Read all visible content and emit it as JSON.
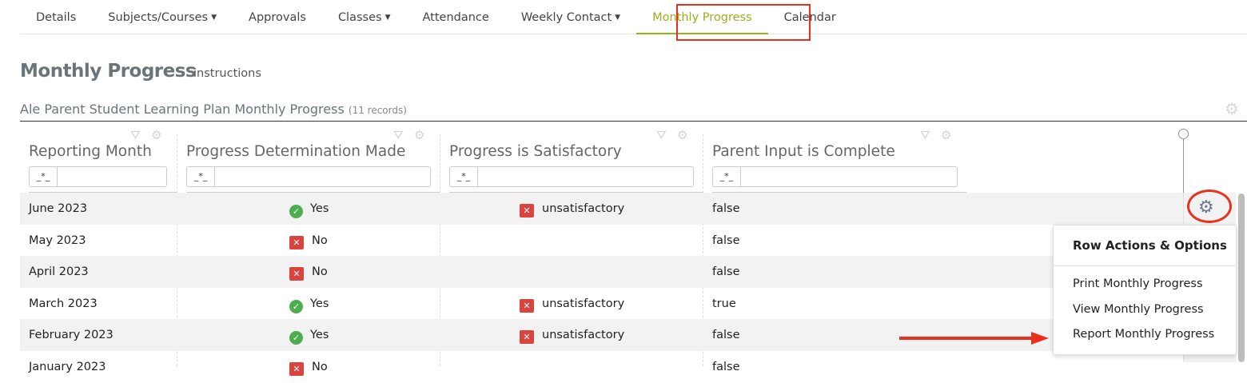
{
  "tabs": [
    {
      "label": "Details",
      "dropdown": false
    },
    {
      "label": "Subjects/Courses",
      "dropdown": true
    },
    {
      "label": "Approvals",
      "dropdown": false
    },
    {
      "label": "Classes",
      "dropdown": true
    },
    {
      "label": "Attendance",
      "dropdown": false
    },
    {
      "label": "Weekly Contact",
      "dropdown": true
    },
    {
      "label": "Monthly Progress",
      "dropdown": false,
      "active": true
    },
    {
      "label": "Calendar",
      "dropdown": false
    }
  ],
  "page": {
    "title": "Monthly Progress",
    "instructions": "instructions",
    "subtitle": "Ale Parent Student Learning Plan Monthly Progress",
    "record_count": "(11 records)"
  },
  "columns": [
    {
      "label": "Reporting Month",
      "filter_op": "_*_"
    },
    {
      "label": "Progress Determination Made",
      "filter_op": "_*_"
    },
    {
      "label": "Progress is Satisfactory",
      "filter_op": "_*_"
    },
    {
      "label": "Parent Input is Complete",
      "filter_op": "_*_"
    }
  ],
  "rows": [
    {
      "month": "June 2023",
      "determination": "Yes",
      "det_ok": true,
      "satisfactory": "unsatisfactory",
      "parent_input": "false"
    },
    {
      "month": "May 2023",
      "determination": "No",
      "det_ok": false,
      "satisfactory": "",
      "parent_input": "false"
    },
    {
      "month": "April 2023",
      "determination": "No",
      "det_ok": false,
      "satisfactory": "",
      "parent_input": "false"
    },
    {
      "month": "March 2023",
      "determination": "Yes",
      "det_ok": true,
      "satisfactory": "unsatisfactory",
      "parent_input": "true"
    },
    {
      "month": "February 2023",
      "determination": "Yes",
      "det_ok": true,
      "satisfactory": "unsatisfactory",
      "parent_input": "false"
    },
    {
      "month": "January 2023",
      "determination": "No",
      "det_ok": false,
      "satisfactory": "",
      "parent_input": "false"
    }
  ],
  "menu": {
    "title": "Row Actions & Options",
    "items": [
      "Print Monthly Progress",
      "View Monthly Progress",
      "Report Monthly Progress"
    ]
  },
  "colors": {
    "accent": "#9cb01e",
    "annotation": "#e8301c",
    "ok": "#4cae4c",
    "bad": "#d9443f"
  }
}
